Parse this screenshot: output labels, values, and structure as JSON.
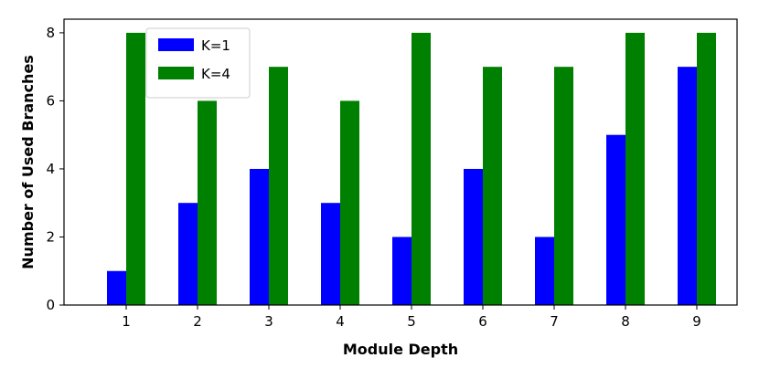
{
  "chart_data": {
    "type": "bar",
    "xlabel": "Module Depth",
    "ylabel": "Number of Used Branches",
    "categories": [
      "1",
      "2",
      "3",
      "4",
      "5",
      "6",
      "7",
      "8",
      "9"
    ],
    "series": [
      {
        "name": "K=1",
        "color": "#0000ff",
        "values": [
          1,
          3,
          4,
          3,
          2,
          4,
          2,
          5,
          7
        ]
      },
      {
        "name": "K=4",
        "color": "#008000",
        "values": [
          8,
          6,
          7,
          6,
          8,
          7,
          7,
          8,
          8
        ]
      }
    ],
    "ylim": [
      0,
      8.4
    ],
    "yticks": [
      0,
      2,
      4,
      6,
      8
    ],
    "grid": false,
    "legend_position": "top-left"
  }
}
